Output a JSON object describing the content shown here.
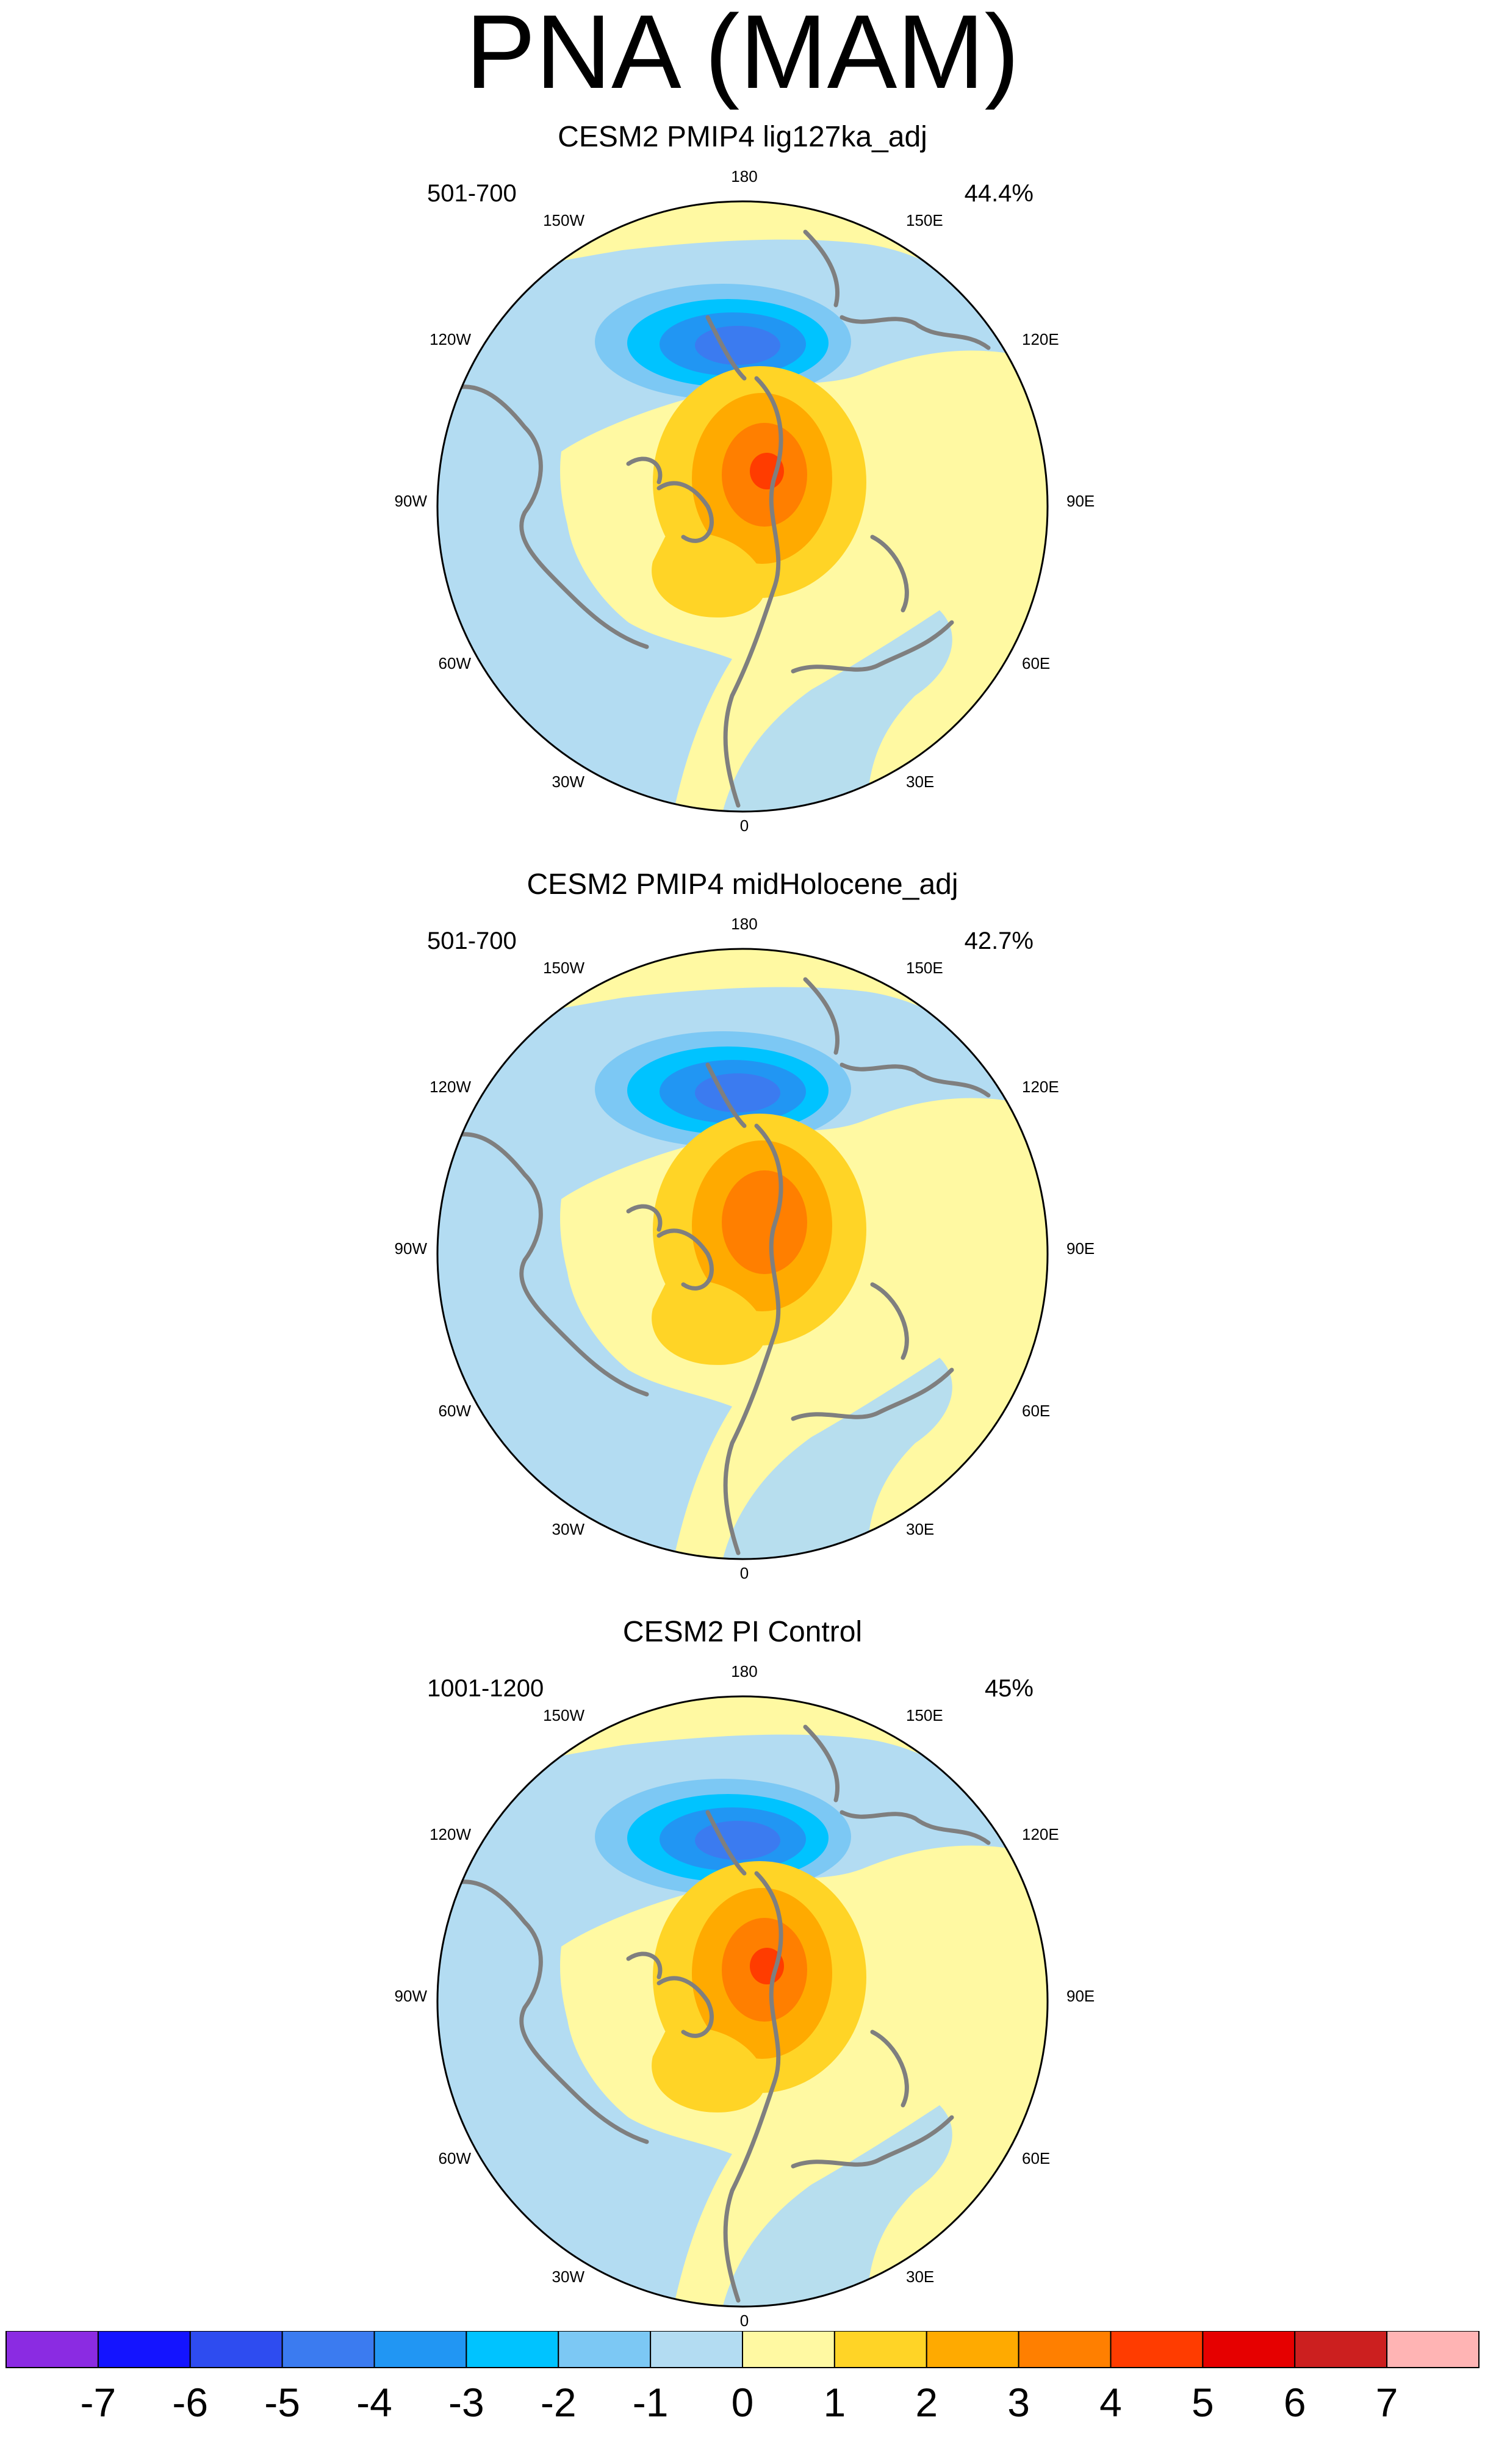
{
  "title": "PNA (MAM)",
  "longitude_labels": {
    "top": "180",
    "top_left": "150W",
    "top_right": "150E",
    "upper_left": "120W",
    "upper_right": "120E",
    "left": "90W",
    "right": "90E",
    "lower_left": "60W",
    "lower_right": "60E",
    "bottom_left": "30W",
    "bottom_right": "30E",
    "bottom": "0"
  },
  "panels": [
    {
      "title": "CESM2 PMIP4 lig127ka_adj",
      "years": "501-700",
      "variance": "44.4%",
      "pacific_low_min": -5,
      "canada_high_max": 5,
      "atlantic_max": 2
    },
    {
      "title": "CESM2 PMIP4 midHolocene_adj",
      "years": "501-700",
      "variance": "42.7%",
      "pacific_low_min": -5,
      "canada_high_max": 4,
      "atlantic_max": 2
    },
    {
      "title": "CESM2 PI Control",
      "years": "1001-1200",
      "variance": "45%",
      "pacific_low_min": -5,
      "canada_high_max": 5,
      "atlantic_max": 2
    }
  ],
  "colorbar": {
    "labels": [
      "-7",
      "-6",
      "-5",
      "-4",
      "-3",
      "-2",
      "-1",
      "0",
      "1",
      "2",
      "3",
      "4",
      "5",
      "6",
      "7"
    ],
    "colors": [
      "#8b2be2",
      "#1414ff",
      "#2e4cf0",
      "#3b7bf0",
      "#2196f3",
      "#00c3ff",
      "#7cc8f4",
      "#b3dcf2",
      "#fff9a2",
      "#ffd426",
      "#ffaa00",
      "#ff7f00",
      "#ff3c00",
      "#e60000",
      "#cc1f1f",
      "#ffb4b4"
    ]
  },
  "colors": {
    "coast": "#7f7f7f",
    "outline": "#000000"
  }
}
